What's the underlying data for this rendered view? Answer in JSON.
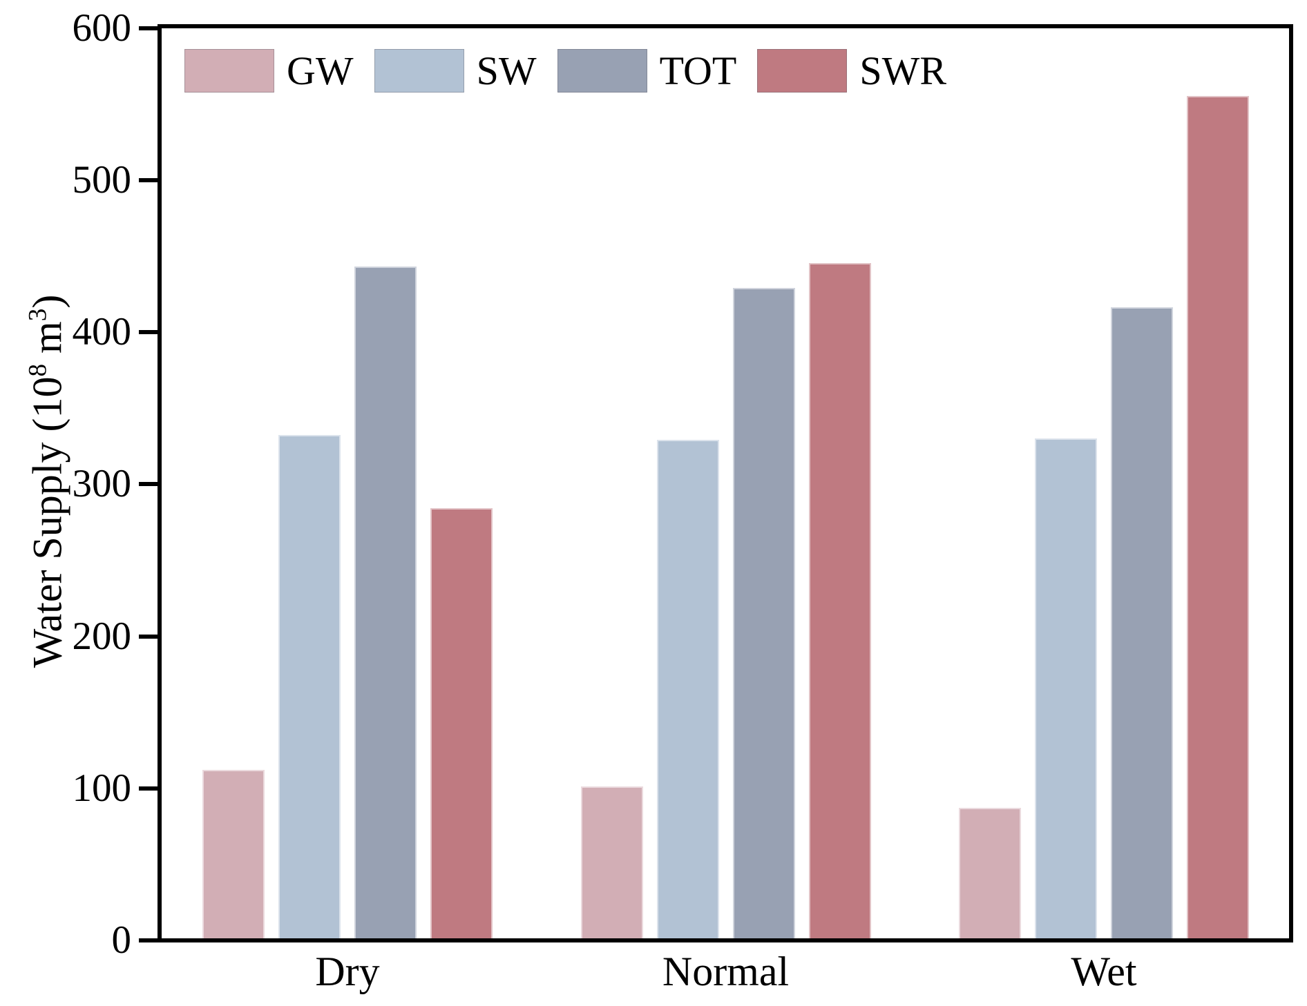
{
  "chart_data": {
    "type": "bar",
    "title": "",
    "categories": [
      "Dry",
      "Normal",
      "Wet"
    ],
    "series": [
      {
        "name": "GW",
        "color": "#d2aeb5",
        "values": [
          111,
          100,
          86
        ]
      },
      {
        "name": "SW",
        "color": "#b2c2d4",
        "values": [
          331,
          328,
          329
        ]
      },
      {
        "name": "TOT",
        "color": "#98a1b3",
        "values": [
          442,
          428,
          415
        ]
      },
      {
        "name": "SWR",
        "color": "#bf7a81",
        "values": [
          283,
          444,
          554
        ]
      }
    ],
    "ylabel": "Water Supply (10⁸ m³)",
    "ylabel_parts": {
      "prefix": "Water Supply (10",
      "sup1": "8",
      "mid": " m",
      "sup2": "3",
      "suffix": ")"
    },
    "xlabel": "",
    "yticks": [
      "0",
      "100",
      "200",
      "300",
      "400",
      "500",
      "600"
    ],
    "ytick_values": [
      0,
      100,
      200,
      300,
      400,
      500,
      600
    ],
    "ylim": [
      0,
      600
    ],
    "grid": false,
    "legend_position": "top-left",
    "spine_color": "#000000",
    "background_color": "#ffffff"
  }
}
